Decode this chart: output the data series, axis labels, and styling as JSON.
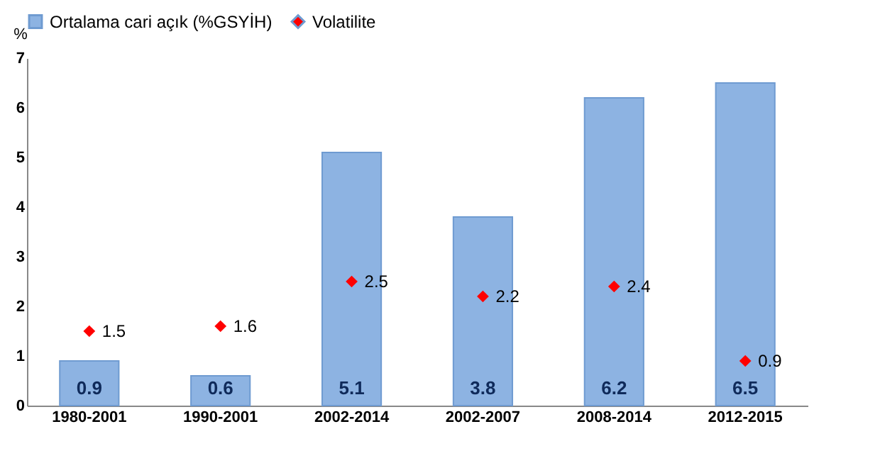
{
  "chart_data": {
    "type": "bar",
    "ylabel": "%",
    "categories": [
      "1980-2001",
      "1990-2001",
      "2002-2014",
      "2002-2007",
      "2008-2014",
      "2012-2015"
    ],
    "series": [
      {
        "name": "Ortalama cari açık (%GSYİH)",
        "color": "#8db3e2",
        "values": [
          0.9,
          0.6,
          5.1,
          3.8,
          6.2,
          6.5
        ]
      },
      {
        "name": "Volatilite",
        "type": "scatter",
        "color": "#ff0000",
        "x": [
          "1980-2001",
          "1990-2001",
          "2002-2014",
          "2002-2007",
          "2008-2014",
          "2012-2015"
        ],
        "values": [
          1.5,
          1.6,
          2.5,
          2.2,
          2.4,
          0.9
        ]
      }
    ],
    "ylim": [
      0,
      7
    ],
    "yticks": [
      0,
      1,
      2,
      3,
      4,
      5,
      6,
      7
    ],
    "grid": false,
    "legend": "top",
    "marker": "diamond",
    "data_labels": true
  }
}
